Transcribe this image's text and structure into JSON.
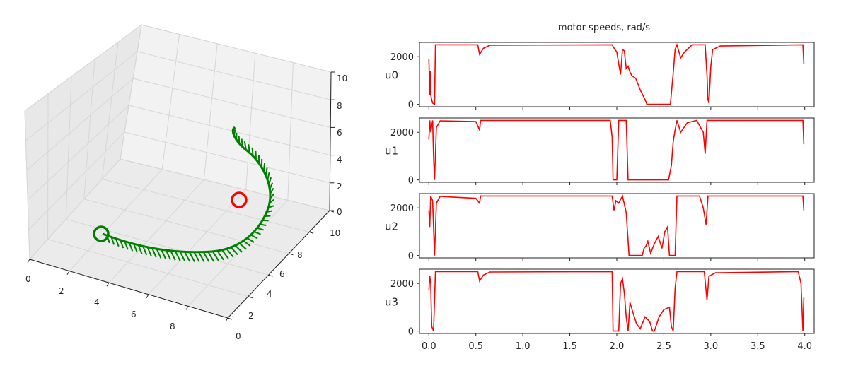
{
  "chart_data": [
    {
      "type": "line3d",
      "x_ticks": [
        "0",
        "2",
        "4",
        "6",
        "8"
      ],
      "y_ticks": [
        "0",
        "2",
        "4",
        "6",
        "8",
        "10"
      ],
      "z_ticks": [
        "0",
        "2",
        "4",
        "6",
        "8",
        "10"
      ],
      "xlim": [
        0,
        10
      ],
      "ylim": [
        0,
        10
      ],
      "zlim": [
        0,
        10
      ],
      "grid": true,
      "start_marker_color": "#ff0000",
      "end_marker_color": "#008000",
      "trajectory_color": "#008000",
      "note": ""
    },
    {
      "type": "line",
      "title": "motor speeds, rad/s",
      "x_ticks": [
        "0.0",
        "0.5",
        "1.0",
        "1.5",
        "2.0",
        "2.5",
        "3.0",
        "3.5",
        "4.0"
      ],
      "y_ticks": [
        "0",
        "2000"
      ],
      "xlim": [
        -0.1,
        4.1
      ],
      "ylim": [
        -100,
        2600
      ],
      "line_color": "#ff0000",
      "series": [
        {
          "name": "u0",
          "points": [
            [
              0.0,
              1900
            ],
            [
              0.01,
              400
            ],
            [
              0.015,
              1400
            ],
            [
              0.02,
              400
            ],
            [
              0.03,
              200
            ],
            [
              0.04,
              50
            ],
            [
              0.06,
              0
            ],
            [
              0.07,
              2500
            ],
            [
              0.52,
              2500
            ],
            [
              0.54,
              2100
            ],
            [
              0.58,
              2350
            ],
            [
              0.65,
              2480
            ],
            [
              1.95,
              2500
            ],
            [
              1.98,
              2300
            ],
            [
              2.0,
              2200
            ],
            [
              2.02,
              1700
            ],
            [
              2.04,
              1250
            ],
            [
              2.06,
              2300
            ],
            [
              2.08,
              2250
            ],
            [
              2.1,
              1500
            ],
            [
              2.12,
              1600
            ],
            [
              2.14,
              1350
            ],
            [
              2.16,
              1200
            ],
            [
              2.2,
              1100
            ],
            [
              2.25,
              600
            ],
            [
              2.3,
              200
            ],
            [
              2.32,
              0
            ],
            [
              2.57,
              0
            ],
            [
              2.6,
              1300
            ],
            [
              2.62,
              2300
            ],
            [
              2.64,
              2500
            ],
            [
              2.68,
              1950
            ],
            [
              2.72,
              2200
            ],
            [
              2.8,
              2500
            ],
            [
              2.94,
              2500
            ],
            [
              2.96,
              1200
            ],
            [
              2.97,
              200
            ],
            [
              2.98,
              50
            ],
            [
              3.0,
              1600
            ],
            [
              3.02,
              2300
            ],
            [
              3.1,
              2450
            ],
            [
              3.98,
              2500
            ],
            [
              3.99,
              1700
            ]
          ]
        },
        {
          "name": "u1",
          "points": [
            [
              0.0,
              1700
            ],
            [
              0.01,
              2500
            ],
            [
              0.02,
              2000
            ],
            [
              0.04,
              2500
            ],
            [
              0.05,
              1000
            ],
            [
              0.06,
              0
            ],
            [
              0.08,
              2200
            ],
            [
              0.12,
              2480
            ],
            [
              0.5,
              2450
            ],
            [
              0.54,
              2100
            ],
            [
              0.55,
              2500
            ],
            [
              1.93,
              2500
            ],
            [
              1.95,
              1800
            ],
            [
              1.96,
              0
            ],
            [
              2.0,
              0
            ],
            [
              2.02,
              2500
            ],
            [
              2.1,
              2500
            ],
            [
              2.12,
              0
            ],
            [
              2.55,
              0
            ],
            [
              2.58,
              600
            ],
            [
              2.6,
              1600
            ],
            [
              2.62,
              2100
            ],
            [
              2.64,
              2500
            ],
            [
              2.68,
              2000
            ],
            [
              2.75,
              2400
            ],
            [
              2.85,
              2500
            ],
            [
              2.92,
              2000
            ],
            [
              2.94,
              1100
            ],
            [
              2.96,
              2500
            ],
            [
              3.98,
              2500
            ],
            [
              3.99,
              1500
            ]
          ]
        },
        {
          "name": "u2",
          "points": [
            [
              0.0,
              1900
            ],
            [
              0.01,
              1200
            ],
            [
              0.02,
              2500
            ],
            [
              0.04,
              2300
            ],
            [
              0.06,
              0
            ],
            [
              0.08,
              2200
            ],
            [
              0.12,
              2480
            ],
            [
              0.5,
              2400
            ],
            [
              0.54,
              2200
            ],
            [
              0.55,
              2500
            ],
            [
              1.95,
              2500
            ],
            [
              1.97,
              1900
            ],
            [
              1.99,
              2300
            ],
            [
              2.02,
              2200
            ],
            [
              2.06,
              2500
            ],
            [
              2.1,
              1800
            ],
            [
              2.13,
              0
            ],
            [
              2.27,
              0
            ],
            [
              2.29,
              300
            ],
            [
              2.31,
              400
            ],
            [
              2.33,
              600
            ],
            [
              2.36,
              100
            ],
            [
              2.4,
              500
            ],
            [
              2.44,
              800
            ],
            [
              2.48,
              300
            ],
            [
              2.51,
              1000
            ],
            [
              2.54,
              1200
            ],
            [
              2.56,
              0
            ],
            [
              2.62,
              0
            ],
            [
              2.64,
              2500
            ],
            [
              2.88,
              2500
            ],
            [
              2.92,
              2000
            ],
            [
              2.95,
              1300
            ],
            [
              2.97,
              2500
            ],
            [
              3.98,
              2500
            ],
            [
              3.99,
              1900
            ]
          ]
        },
        {
          "name": "u3",
          "points": [
            [
              0.0,
              1700
            ],
            [
              0.01,
              2300
            ],
            [
              0.02,
              2000
            ],
            [
              0.03,
              200
            ],
            [
              0.05,
              0
            ],
            [
              0.07,
              2500
            ],
            [
              0.52,
              2500
            ],
            [
              0.54,
              2100
            ],
            [
              0.58,
              2350
            ],
            [
              0.65,
              2480
            ],
            [
              1.95,
              2500
            ],
            [
              1.96,
              0
            ],
            [
              2.02,
              0
            ],
            [
              2.04,
              2000
            ],
            [
              2.06,
              2200
            ],
            [
              2.08,
              1600
            ],
            [
              2.1,
              600
            ],
            [
              2.12,
              0
            ],
            [
              2.14,
              1200
            ],
            [
              2.17,
              800
            ],
            [
              2.21,
              300
            ],
            [
              2.25,
              100
            ],
            [
              2.3,
              600
            ],
            [
              2.35,
              400
            ],
            [
              2.38,
              0
            ],
            [
              2.4,
              0
            ],
            [
              2.45,
              600
            ],
            [
              2.5,
              900
            ],
            [
              2.56,
              1000
            ],
            [
              2.58,
              200
            ],
            [
              2.6,
              0
            ],
            [
              2.62,
              1800
            ],
            [
              2.64,
              2500
            ],
            [
              2.93,
              2500
            ],
            [
              2.96,
              1300
            ],
            [
              2.98,
              2300
            ],
            [
              3.05,
              2450
            ],
            [
              3.93,
              2500
            ],
            [
              3.96,
              2000
            ],
            [
              3.98,
              0
            ],
            [
              3.99,
              1400
            ]
          ]
        }
      ]
    }
  ]
}
